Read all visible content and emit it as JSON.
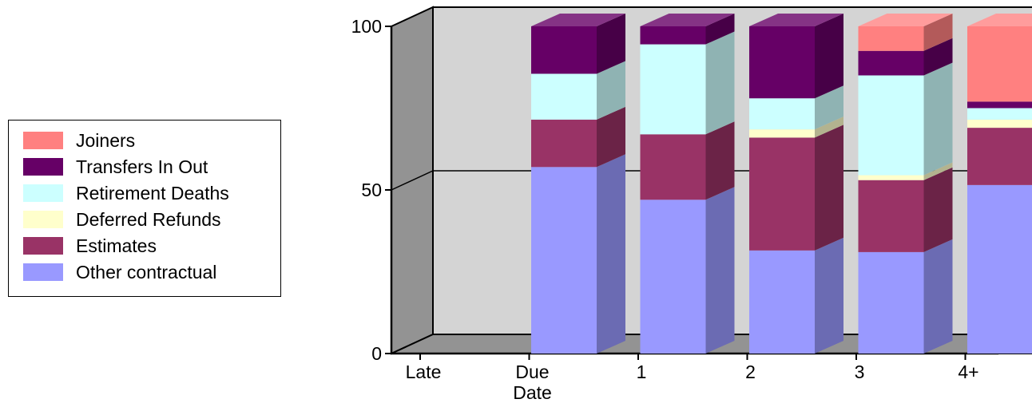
{
  "chart_data": {
    "type": "bar",
    "stacked": true,
    "categories": [
      "Late",
      "Due Date",
      "1",
      "2",
      "3",
      "4+"
    ],
    "category_lines": [
      [
        "Late"
      ],
      [
        "Due",
        "Date"
      ],
      [
        "1"
      ],
      [
        "2"
      ],
      [
        "3"
      ],
      [
        "4+"
      ]
    ],
    "ylim": [
      0,
      100
    ],
    "yticks": [
      "0",
      "50",
      "100"
    ],
    "xlabel": "",
    "ylabel": "",
    "title": "",
    "legend_position": "left",
    "series": [
      {
        "name": "Other contractual",
        "color": "#9999ff",
        "side": "#6b6bb3",
        "top": "#b8b8ff",
        "values": [
          0,
          57,
          47,
          31.5,
          31,
          51.5
        ]
      },
      {
        "name": "Estimates",
        "color": "#993366",
        "side": "#6b2347",
        "top": "#b5577f",
        "values": [
          0,
          14.5,
          20,
          34.5,
          22,
          17.5
        ]
      },
      {
        "name": "Deferred Refunds",
        "color": "#ffffcc",
        "side": "#b3b38f",
        "top": "#ffffe0",
        "values": [
          0,
          0,
          0,
          2.5,
          1.5,
          2.5
        ]
      },
      {
        "name": "Retirement Deaths",
        "color": "#ccffff",
        "side": "#8fb3b3",
        "top": "#e0ffff",
        "values": [
          0,
          14,
          27.5,
          9.5,
          30.5,
          3.5
        ]
      },
      {
        "name": "Transfers In Out",
        "color": "#660066",
        "side": "#470047",
        "top": "#853385",
        "values": [
          0,
          14.5,
          5.5,
          22,
          7.5,
          2
        ]
      },
      {
        "name": "Joiners",
        "color": "#ff8080",
        "side": "#b35a5a",
        "top": "#ff9c9c",
        "values": [
          0,
          0,
          0,
          0,
          7.5,
          23
        ]
      }
    ]
  },
  "legend": {
    "items": [
      {
        "label": "Joiners",
        "color": "#ff8080"
      },
      {
        "label": "Transfers In Out",
        "color": "#660066"
      },
      {
        "label": "Retirement Deaths",
        "color": "#ccffff"
      },
      {
        "label": "Deferred Refunds",
        "color": "#ffffcc"
      },
      {
        "label": "Estimates",
        "color": "#993366"
      },
      {
        "label": "Other contractual",
        "color": "#9999ff"
      }
    ]
  }
}
